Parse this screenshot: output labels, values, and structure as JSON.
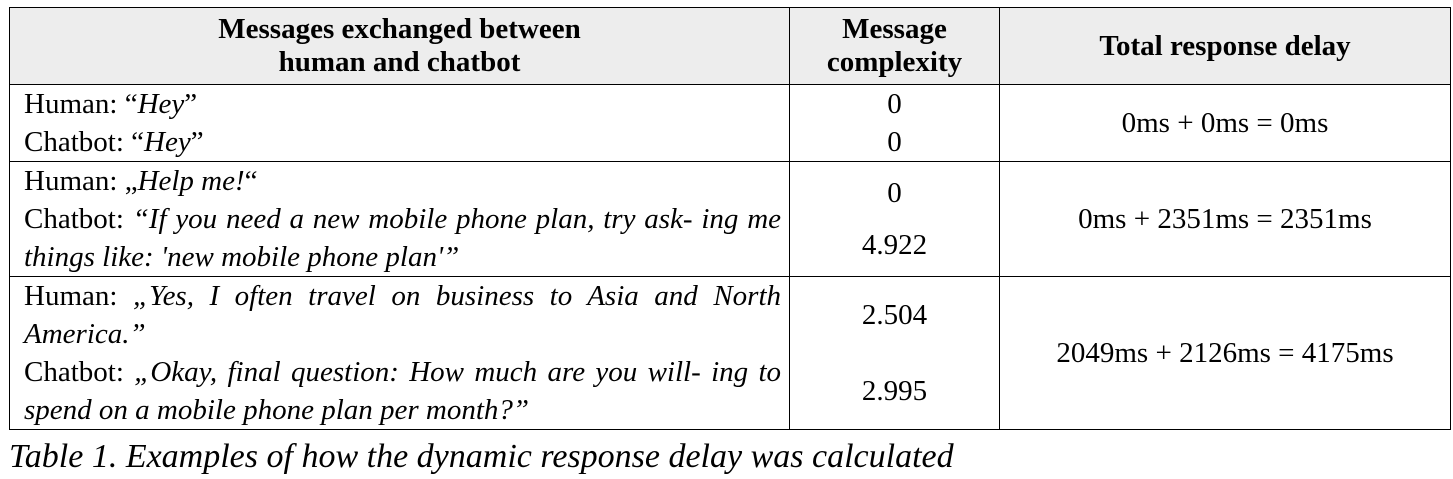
{
  "table": {
    "headers": {
      "messages": [
        "Messages exchanged between",
        "human and chatbot"
      ],
      "complexity": [
        "Message",
        "complexity"
      ],
      "delay": "Total response delay"
    },
    "rows": [
      {
        "human": {
          "speaker": "Human:",
          "open": "“",
          "text": "Hey",
          "close": "”"
        },
        "chatbot": {
          "speaker": "Chatbot:",
          "open": "“",
          "text": "Hey",
          "close": "”"
        },
        "complexity": [
          "0",
          "0"
        ],
        "delay": "0ms + 0ms = 0ms"
      },
      {
        "human": {
          "speaker": "Human:",
          "open": "„",
          "text": "Help me!",
          "close": "“"
        },
        "chatbot": {
          "speaker": "Chatbot:",
          "open": "",
          "text": "“If you need a new mobile phone plan, try ask- ing me things like: 'new mobile phone plan'”",
          "close": ""
        },
        "complexity": [
          "0",
          "4.922"
        ],
        "delay": "0ms + 2351ms = 2351ms"
      },
      {
        "human": {
          "speaker": "Human:",
          "open": "",
          "text": "„Yes, I often travel on business to Asia and North America.”",
          "close": ""
        },
        "chatbot": {
          "speaker": "Chatbot:",
          "open": "",
          "text": "„Okay, final question: How much are you will- ing to spend on a mobile phone plan per month?”",
          "close": ""
        },
        "complexity": [
          "2.504",
          "2.995"
        ],
        "delay": "2049ms + 2126ms = 4175ms"
      }
    ]
  },
  "caption": "Table 1. Examples of how the dynamic response delay was calculated"
}
